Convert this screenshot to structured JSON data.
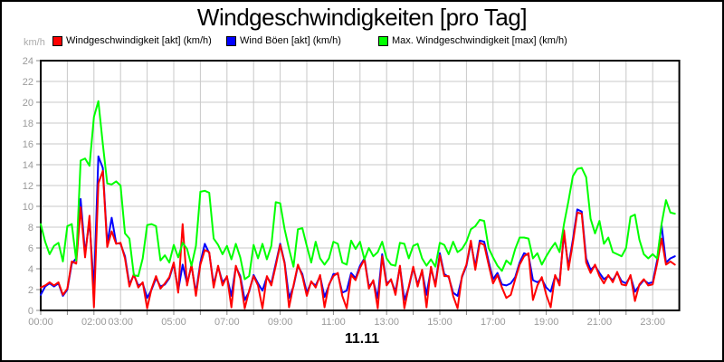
{
  "title": "Windgeschwindigkeiten [pro Tag]",
  "unit_label": "km/h",
  "date_label": "11.11",
  "legend": [
    {
      "label": "Windgeschwindigkeit [akt] (km/h)",
      "color": "#ff0000"
    },
    {
      "label": "Wind Böen [akt] (km/h)",
      "color": "#0000ff"
    },
    {
      "label": "Max. Windgeschwindigkeit [max] (km/h)",
      "color": "#00ff00"
    }
  ],
  "colors": {
    "background": "#ffffff",
    "frame_border": "#000000",
    "plot_border": "#000000",
    "grid": "#c8c8c8",
    "axis_text": "#9a9a9a",
    "tick": "#888888",
    "series_akt": "#ff0000",
    "series_boeen": "#0000ff",
    "series_max": "#00ff00"
  },
  "chart_data": {
    "type": "line",
    "title": "Windgeschwindigkeiten [pro Tag]",
    "xlabel": "11.11",
    "ylabel": "km/h",
    "ylim": [
      0,
      24
    ],
    "y_ticks": [
      0,
      2,
      4,
      6,
      8,
      10,
      12,
      14,
      16,
      18,
      20,
      22,
      24
    ],
    "x_span_hours": 24,
    "sample_interval_minutes": 10,
    "grid": true,
    "legend_position": "top",
    "x_tick_hours": [
      0,
      1,
      2,
      3,
      4,
      5,
      6,
      7,
      8,
      9,
      10,
      11,
      12,
      13,
      14,
      15,
      16,
      17,
      18,
      19,
      20,
      21,
      22,
      23
    ],
    "x_tick_labels": [
      {
        "hour": 0,
        "label": "00:00"
      },
      {
        "hour": 2,
        "label": "02:00"
      },
      {
        "hour": 3,
        "label": "03:00"
      },
      {
        "hour": 5,
        "label": "05:00"
      },
      {
        "hour": 7,
        "label": "07:00"
      },
      {
        "hour": 9,
        "label": "09:00"
      },
      {
        "hour": 11,
        "label": "11:00"
      },
      {
        "hour": 13,
        "label": "13:00"
      },
      {
        "hour": 15,
        "label": "15:00"
      },
      {
        "hour": 17,
        "label": "17:00"
      },
      {
        "hour": 19,
        "label": "19:00"
      },
      {
        "hour": 21,
        "label": "21:00"
      },
      {
        "hour": 23,
        "label": "23:00"
      }
    ],
    "series": [
      {
        "name": "Wind Böen [akt] (km/h)",
        "color": "#0000ff",
        "values": [
          1.5,
          2.3,
          2.6,
          2.3,
          2.6,
          1.4,
          2.0,
          4.5,
          5.0,
          10.7,
          5.5,
          8.6,
          2.0,
          14.8,
          13.7,
          6.4,
          8.9,
          6.5,
          6.4,
          5.2,
          2.5,
          3.4,
          2.4,
          2.6,
          1.2,
          2.0,
          3.1,
          2.3,
          2.5,
          3.1,
          4.5,
          1.9,
          4.4,
          2.6,
          4.3,
          1.7,
          4.6,
          6.4,
          5.5,
          2.5,
          4.2,
          2.7,
          3.2,
          1.4,
          4.2,
          3.3,
          1.0,
          1.8,
          3.4,
          2.6,
          1.9,
          3.2,
          2.6,
          4.5,
          6.4,
          4.6,
          1.2,
          2.3,
          4.3,
          3.5,
          1.7,
          2.7,
          2.4,
          3.3,
          1.3,
          2.4,
          3.5,
          3.5,
          1.7,
          1.9,
          3.6,
          3.1,
          4.3,
          5.0,
          2.3,
          2.8,
          1.2,
          5.4,
          2.6,
          2.9,
          1.8,
          4.2,
          1.0,
          2.2,
          4.1,
          2.5,
          3.8,
          1.5,
          4.0,
          2.5,
          5.5,
          3.5,
          3.2,
          1.7,
          1.4,
          3.2,
          4.3,
          6.5,
          4.2,
          6.7,
          6.6,
          4.7,
          3.0,
          3.6,
          2.5,
          2.4,
          2.6,
          3.2,
          4.6,
          5.5,
          5.3,
          2.9,
          2.7,
          3.0,
          2.2,
          1.8,
          3.3,
          2.7,
          7.4,
          4.2,
          6.8,
          9.7,
          9.5,
          5.0,
          3.9,
          4.3,
          3.6,
          3.0,
          3.3,
          2.9,
          3.6,
          2.8,
          2.6,
          3.3,
          1.8,
          2.4,
          2.9,
          2.6,
          2.7,
          4.8,
          8.2,
          4.6,
          5.0,
          5.2
        ]
      },
      {
        "name": "Windgeschwindigkeit [akt] (km/h)",
        "color": "#ff0000",
        "values": [
          2.2,
          2.4,
          2.7,
          2.4,
          2.7,
          1.5,
          2.1,
          4.7,
          4.5,
          9.9,
          5.1,
          9.1,
          0.3,
          12.2,
          13.4,
          6.1,
          7.6,
          6.4,
          6.5,
          5.0,
          2.3,
          3.5,
          2.2,
          2.7,
          0.2,
          2.1,
          3.3,
          2.1,
          2.6,
          3.2,
          4.6,
          1.7,
          8.3,
          2.4,
          4.4,
          1.4,
          4.4,
          5.8,
          5.6,
          2.2,
          4.3,
          2.4,
          3.3,
          0.3,
          4.3,
          3.1,
          0.2,
          1.9,
          3.3,
          2.4,
          0.2,
          3.3,
          2.4,
          4.3,
          6.3,
          4.5,
          0.3,
          2.4,
          4.4,
          3.3,
          1.4,
          2.8,
          2.2,
          3.4,
          0.3,
          2.5,
          3.3,
          3.6,
          1.4,
          0.2,
          3.4,
          2.9,
          4.1,
          4.9,
          2.1,
          2.9,
          0.2,
          5.2,
          2.4,
          3.0,
          1.5,
          4.3,
          0.2,
          2.3,
          4.2,
          2.3,
          3.9,
          0.3,
          4.2,
          2.3,
          5.3,
          3.3,
          3.3,
          1.4,
          0.2,
          3.3,
          4.4,
          6.7,
          3.9,
          6.5,
          6.3,
          4.4,
          2.6,
          3.4,
          2.2,
          1.2,
          1.5,
          3.0,
          4.4,
          5.2,
          5.5,
          1.0,
          2.4,
          3.2,
          1.5,
          0.3,
          3.4,
          2.4,
          7.7,
          3.9,
          6.5,
          9.4,
          9.3,
          4.6,
          3.6,
          4.4,
          3.3,
          2.6,
          3.4,
          2.7,
          3.7,
          2.5,
          2.4,
          3.4,
          0.9,
          2.5,
          3.0,
          2.4,
          2.5,
          4.5,
          6.9,
          4.4,
          4.7,
          4.4
        ]
      },
      {
        "name": "Max. Windgeschwindigkeit [max] (km/h)",
        "color": "#00ff00",
        "values": [
          8.3,
          6.6,
          5.4,
          6.2,
          6.5,
          4.7,
          8.1,
          8.3,
          4.8,
          14.4,
          14.6,
          13.9,
          18.6,
          20.1,
          16.0,
          12.2,
          12.1,
          12.4,
          12.0,
          7.4,
          6.9,
          3.4,
          3.3,
          5.0,
          8.2,
          8.3,
          8.1,
          4.8,
          5.3,
          4.6,
          6.3,
          5.1,
          6.5,
          5.9,
          4.3,
          6.2,
          11.4,
          11.5,
          11.3,
          6.9,
          6.3,
          5.4,
          6.2,
          4.9,
          6.4,
          5.1,
          3.0,
          3.3,
          6.3,
          5.0,
          6.4,
          4.9,
          6.2,
          10.4,
          10.3,
          7.8,
          5.9,
          4.2,
          7.8,
          7.9,
          6.2,
          4.6,
          6.6,
          5.0,
          4.4,
          5.0,
          6.6,
          6.4,
          4.6,
          4.4,
          6.7,
          5.9,
          6.6,
          4.9,
          6.0,
          5.2,
          5.6,
          6.6,
          5.0,
          4.4,
          4.3,
          6.5,
          6.4,
          5.0,
          6.2,
          6.4,
          5.0,
          4.3,
          4.9,
          4.2,
          6.5,
          6.3,
          5.4,
          6.6,
          5.6,
          5.9,
          6.6,
          7.8,
          8.1,
          8.7,
          8.6,
          6.0,
          5.1,
          4.3,
          3.8,
          4.8,
          4.4,
          5.9,
          7.0,
          7.0,
          6.9,
          5.0,
          5.5,
          4.4,
          5.2,
          5.9,
          6.5,
          5.6,
          8.3,
          10.5,
          12.9,
          13.6,
          13.7,
          12.8,
          8.8,
          7.4,
          8.6,
          6.4,
          7.0,
          5.6,
          5.4,
          5.2,
          6.0,
          9.0,
          9.2,
          6.8,
          5.4,
          5.0,
          5.4,
          5.0,
          8.3,
          10.6,
          9.4,
          9.3
        ]
      }
    ]
  }
}
